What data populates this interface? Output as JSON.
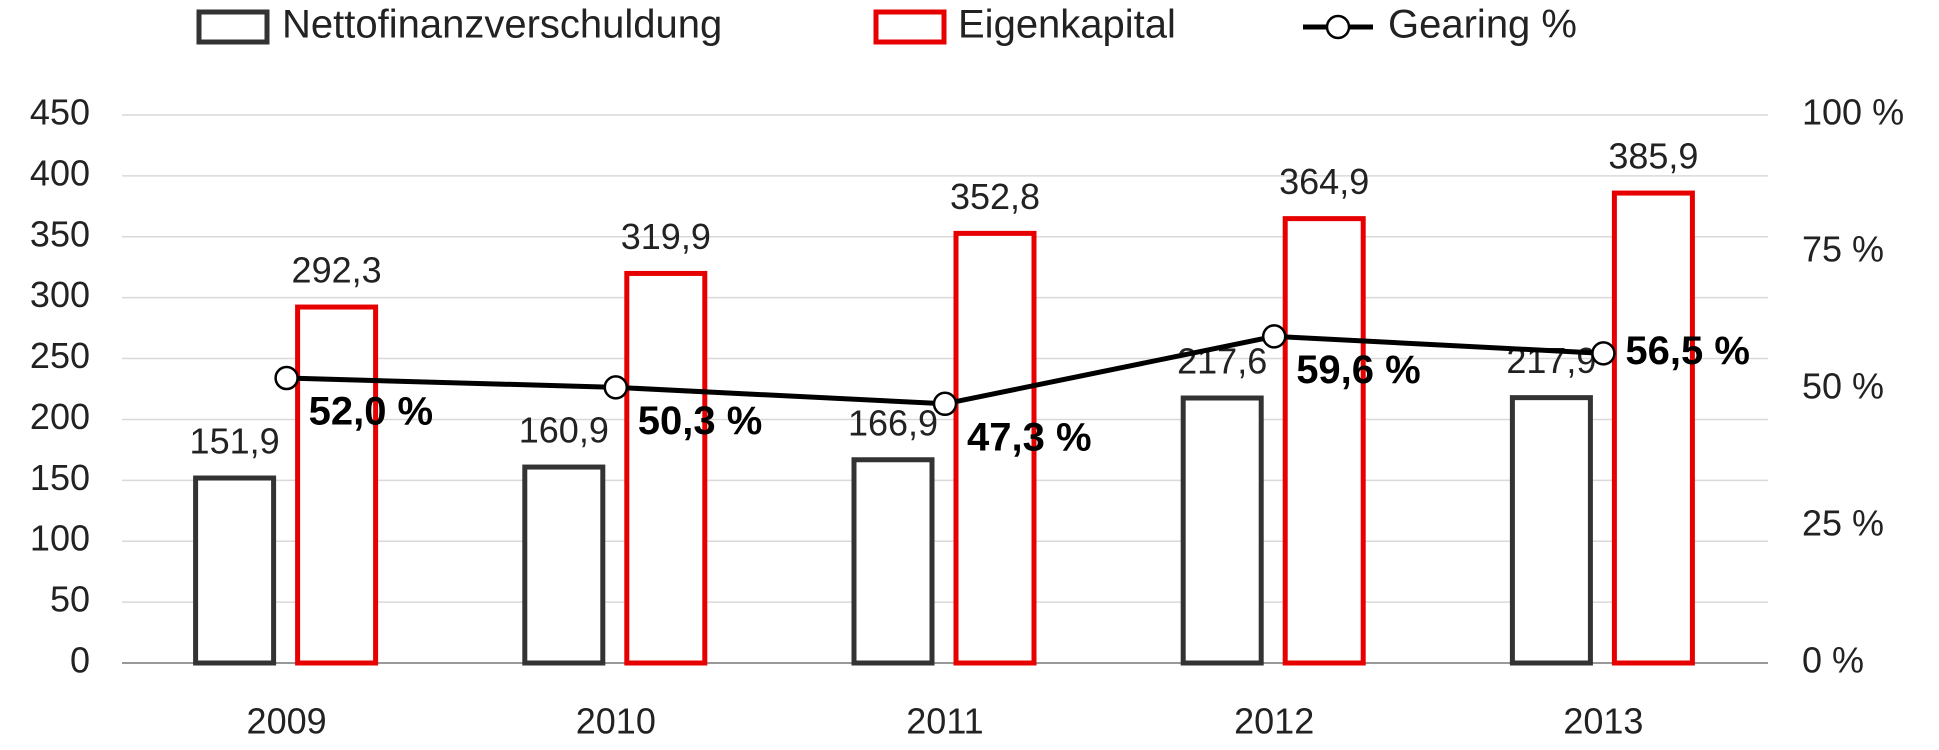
{
  "chart_data": {
    "type": "bar",
    "categories": [
      "2009",
      "2010",
      "2011",
      "2012",
      "2013"
    ],
    "series": [
      {
        "name": "Nettofinanzverschuldung",
        "color": "#333333",
        "values": [
          151.9,
          160.9,
          166.9,
          217.6,
          217.9
        ],
        "value_labels": [
          "151,9",
          "160,9",
          "166,9",
          "217,6",
          "217,9"
        ]
      },
      {
        "name": "Eigenkapital",
        "color": "#e60000",
        "values": [
          292.3,
          319.9,
          352.8,
          364.9,
          385.9
        ],
        "value_labels": [
          "292,3",
          "319,9",
          "352,8",
          "364,9",
          "385,9"
        ]
      },
      {
        "name": "Gearing %",
        "type": "line",
        "axis": "y2",
        "color": "#000000",
        "values": [
          52.0,
          50.3,
          47.3,
          59.6,
          56.5
        ],
        "value_labels": [
          "52,0 %",
          "50,3 %",
          "47,3 %",
          "59,6 %",
          "56,5 %"
        ]
      }
    ],
    "ylim": [
      0,
      450
    ],
    "yticks": [
      0,
      50,
      100,
      150,
      200,
      250,
      300,
      350,
      400,
      450
    ],
    "y2lim": [
      0,
      100
    ],
    "y2ticks": [
      {
        "value": 0,
        "label": "0 %"
      },
      {
        "value": 25,
        "label": "25 %"
      },
      {
        "value": 50,
        "label": "50 %"
      },
      {
        "value": 75,
        "label": "75 %"
      },
      {
        "value": 100,
        "label": "100 %"
      }
    ],
    "grid": true,
    "legend": "top"
  }
}
